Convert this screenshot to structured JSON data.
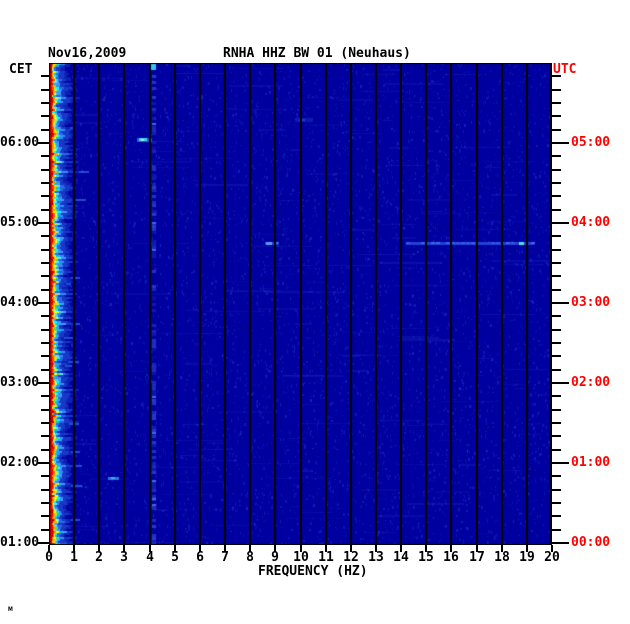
{
  "header": {
    "date": "Nov16,2009",
    "title": "RNHA HHZ BW 01 (Neuhaus)"
  },
  "axes": {
    "left": {
      "label": "CET",
      "color": "#000000",
      "hours": [
        "06:00",
        "05:00",
        "04:00",
        "03:00",
        "02:00",
        "01:00"
      ]
    },
    "right": {
      "label": "UTC",
      "color": "#ff0000",
      "hours": [
        "05:00",
        "04:00",
        "03:00",
        "02:00",
        "01:00",
        "00:00"
      ]
    },
    "bottom": {
      "label": "FREQUENCY (HZ)",
      "ticks": [
        "0",
        "1",
        "2",
        "3",
        "4",
        "5",
        "6",
        "7",
        "8",
        "9",
        "10",
        "11",
        "12",
        "13",
        "14",
        "15",
        "16",
        "17",
        "18",
        "19",
        "20"
      ]
    }
  },
  "footer_mark": "м",
  "chart_data": {
    "type": "heatmap",
    "subtype": "seismic-spectrogram",
    "title": "RNHA HHZ BW 01 (Neuhaus)",
    "date": "Nov16,2009",
    "xlabel": "FREQUENCY (HZ)",
    "x_range_hz": [
      0,
      20
    ],
    "x_tick_step_hz": 1,
    "time_axis": {
      "left_zone": "CET",
      "right_zone": "UTC",
      "utc_offset_hours": -1,
      "top_cet": "07:00",
      "bottom_cet": "01:00",
      "minor_tick_minutes": 10,
      "left_hour_labels": [
        "06:00",
        "05:00",
        "04:00",
        "03:00",
        "02:00",
        "01:00"
      ],
      "right_hour_labels": [
        "05:00",
        "04:00",
        "03:00",
        "02:00",
        "01:00",
        "00:00"
      ]
    },
    "colormap": "jet",
    "background_color": "#0000a0",
    "gridline_color": "#000000",
    "grid": "vertical-1hz",
    "features": [
      {
        "name": "microseism-band",
        "f0": 0.03,
        "f1": 0.75,
        "t0": "01:00",
        "t1": "07:00",
        "desc": "continuous strong low-frequency band, full duration",
        "colors": [
          "#a00000",
          "#ff0000",
          "#ff8c00",
          "#ffff00",
          "#60e040",
          "#00e8ff",
          "#2f7cf0",
          "#1838c8"
        ]
      },
      {
        "name": "narrowband-line",
        "f0": 4.05,
        "f1": 4.3,
        "t0": "01:00",
        "t1": "07:00",
        "color": "#4a6ae8",
        "desc": "persistent faint spectral line near 4.15 Hz"
      },
      {
        "name": "top-edge-burst",
        "f0": 4.05,
        "f1": 4.3,
        "t": "07:00",
        "color": "#38c4f0"
      },
      {
        "name": "event-0603-cet",
        "f0": 3.5,
        "f1": 4.1,
        "t": "06:03",
        "color": "#2858d8",
        "core_color": "#48d0e8",
        "peak_color": "#a0f0cc"
      },
      {
        "name": "faint-patch-0618-cet",
        "f0": 9.8,
        "f1": 10.5,
        "t": "06:18",
        "color": "#1830c0"
      },
      {
        "name": "broadband-streak-0445-cet",
        "t": "04:45",
        "segments": [
          {
            "f0": 8.6,
            "f1": 9.1
          },
          {
            "f0": 14.2,
            "f1": 19.3
          }
        ],
        "color": "#2d55e6",
        "core_f": 8.75,
        "core_color": "#6098f0",
        "bright_f": 18.75,
        "bright_color": "#50e0e8"
      },
      {
        "name": "event-0149-cet",
        "f0": 2.35,
        "f1": 2.8,
        "t": "01:49",
        "color": "#2878d8",
        "core_color": "#40b0e0"
      }
    ]
  }
}
